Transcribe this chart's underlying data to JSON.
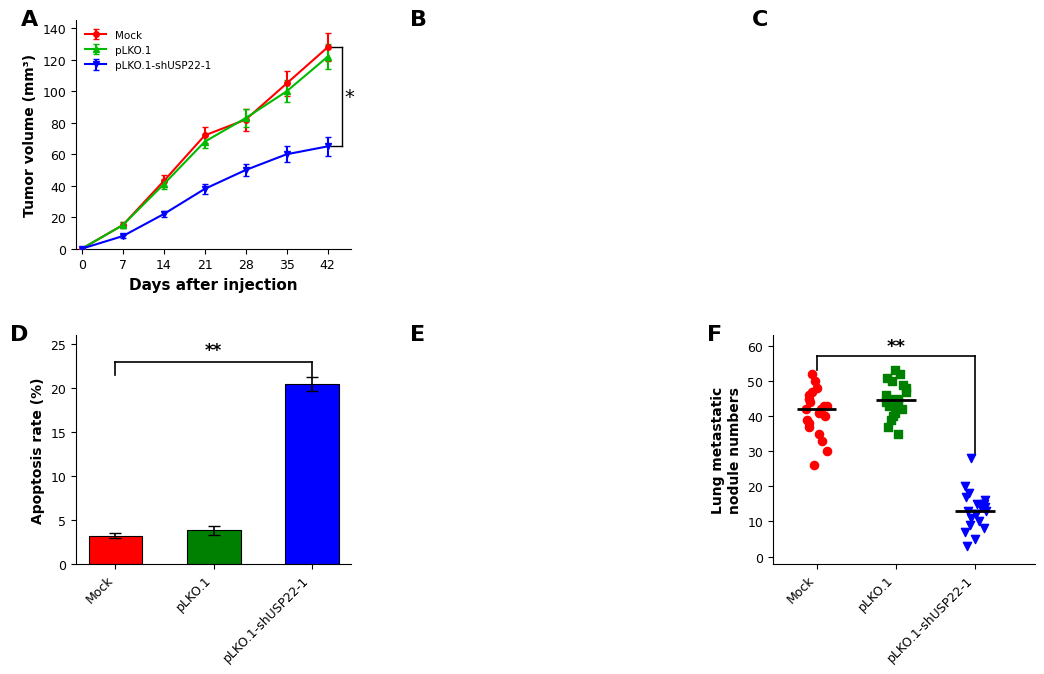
{
  "panel_A": {
    "days": [
      0,
      7,
      14,
      21,
      28,
      35,
      42
    ],
    "mock_mean": [
      0,
      15,
      43,
      72,
      82,
      105,
      128
    ],
    "mock_err": [
      0,
      2,
      4,
      5,
      7,
      8,
      9
    ],
    "plko1_mean": [
      0,
      15,
      41,
      68,
      83,
      100,
      122
    ],
    "plko1_err": [
      0,
      2,
      3,
      4,
      6,
      7,
      8
    ],
    "plko1_sh_mean": [
      0,
      8,
      22,
      38,
      50,
      60,
      65
    ],
    "plko1_sh_err": [
      0,
      1,
      2,
      3,
      4,
      5,
      6
    ],
    "ylabel": "Tumor volume (mm³)",
    "xlabel": "Days after injection",
    "yticks": [
      0,
      20,
      40,
      60,
      80,
      100,
      120,
      140
    ],
    "xticks": [
      0,
      7,
      14,
      21,
      28,
      35,
      42
    ],
    "mock_color": "#FF0000",
    "plko1_color": "#00BB00",
    "plko1_sh_color": "#0000FF",
    "sig_text": "*"
  },
  "panel_D": {
    "categories": [
      "Mock",
      "pLKO.1",
      "pLKO.1-shUSP22-1"
    ],
    "values": [
      3.2,
      3.8,
      20.5
    ],
    "errors": [
      0.3,
      0.5,
      0.8
    ],
    "colors": [
      "#FF0000",
      "#008000",
      "#0000FF"
    ],
    "ylabel": "Apoptosis rate (%)",
    "yticks": [
      0,
      5,
      10,
      15,
      20,
      25
    ],
    "sig_text": "**"
  },
  "panel_F": {
    "mock_data": [
      26,
      30,
      33,
      35,
      37,
      38,
      39,
      40,
      41,
      42,
      42,
      43,
      43,
      44,
      45,
      46,
      47,
      48,
      50,
      52
    ],
    "plko1_data": [
      35,
      37,
      39,
      40,
      41,
      42,
      43,
      43,
      44,
      44,
      45,
      45,
      46,
      47,
      48,
      49,
      50,
      51,
      52,
      53
    ],
    "plko1_sh_data": [
      3,
      5,
      7,
      8,
      9,
      10,
      11,
      12,
      12,
      13,
      13,
      14,
      14,
      15,
      15,
      16,
      17,
      18,
      20,
      28
    ],
    "mock_color": "#FF0000",
    "plko1_color": "#008000",
    "plko1_sh_color": "#0000FF",
    "ylabel": "Lung metastatic\nnodule numbers",
    "yticks": [
      0,
      10,
      20,
      30,
      40,
      50,
      60
    ],
    "sig_text": "**",
    "categories": [
      "Mock",
      "pLKO.1",
      "pLKO.1-shUSP22-1"
    ]
  },
  "label_fontsize": 11,
  "tick_fontsize": 9,
  "panel_label_fontsize": 16,
  "background_color": "#FFFFFF"
}
